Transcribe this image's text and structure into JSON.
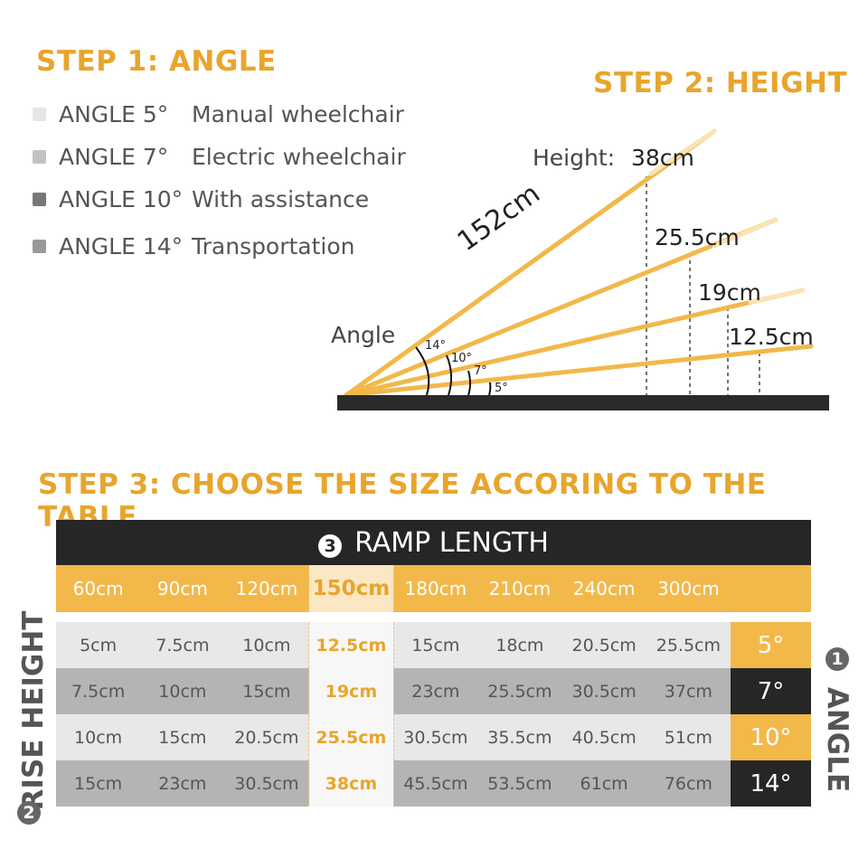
{
  "step1": {
    "title": "STEP 1: ANGLE",
    "items": [
      {
        "angle": "ANGLE 5°",
        "use": "Manual wheelchair",
        "color": "#e6e6e6"
      },
      {
        "angle": "ANGLE 7°",
        "use": "Electric wheelchair",
        "color": "#c2c2c2"
      },
      {
        "angle": "ANGLE 10°",
        "use": "With assistance",
        "color": "#777777"
      },
      {
        "angle": "ANGLE 14°",
        "use": "Transportation",
        "color": "#999999"
      }
    ]
  },
  "step2": {
    "title": "STEP 2: HEIGHT",
    "height_label": "Height:",
    "length": "152cm",
    "angle_label": "Angle",
    "angles": [
      "14°",
      "10°",
      "7°",
      "5°"
    ],
    "heights": [
      "38cm",
      "25.5cm",
      "19cm",
      "12.5cm"
    ]
  },
  "step3": {
    "title": "STEP 3: CHOOSE THE SIZE ACCORING TO THE TABLE",
    "ramp_length": {
      "num": "3",
      "label": "RAMP LENGTH"
    },
    "rise_height": {
      "num": "2",
      "label": "RISE HEIGHT"
    },
    "angle": {
      "num": "1",
      "label": "ANGLE"
    },
    "lengths": [
      "60cm",
      "90cm",
      "120cm",
      "150cm",
      "180cm",
      "210cm",
      "240cm",
      "300cm"
    ],
    "rows": [
      {
        "values": [
          "5cm",
          "7.5cm",
          "10cm",
          "12.5cm",
          "15cm",
          "18cm",
          "20.5cm",
          "25.5cm"
        ],
        "angle": "5°"
      },
      {
        "values": [
          "7.5cm",
          "10cm",
          "15cm",
          "19cm",
          "23cm",
          "25.5cm",
          "30.5cm",
          "37cm"
        ],
        "angle": "7°"
      },
      {
        "values": [
          "10cm",
          "15cm",
          "20.5cm",
          "25.5cm",
          "30.5cm",
          "35.5cm",
          "40.5cm",
          "51cm"
        ],
        "angle": "10°"
      },
      {
        "values": [
          "15cm",
          "23cm",
          "30.5cm",
          "38cm",
          "45.5cm",
          "53.5cm",
          "61cm",
          "76cm"
        ],
        "angle": "14°"
      }
    ],
    "highlight_column": "150cm",
    "colors": {
      "accent": "#f3b84a",
      "dark": "#262626"
    }
  }
}
